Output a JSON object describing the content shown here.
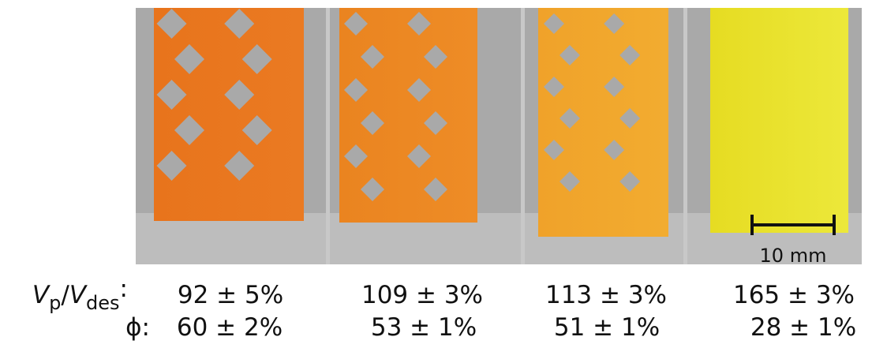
{
  "scale_bar": {
    "label": "10 mm"
  },
  "rows": [
    {
      "label": [
        "V",
        "p",
        "/",
        "V",
        "des",
        ":"
      ],
      "values": [
        "92 ± 5%",
        "109 ± 3%",
        "113 ± 3%",
        "165 ± 3%"
      ]
    },
    {
      "label": [
        "ϕ",
        ":"
      ],
      "values": [
        "60 ± 2%",
        "53 ± 1%",
        "51 ± 1%",
        "28 ± 1%"
      ]
    }
  ]
}
